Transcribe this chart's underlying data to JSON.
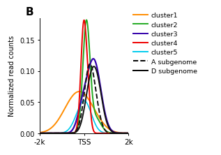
{
  "title": "B",
  "xlabel_ticks": [
    "-2k",
    "TSS",
    "2k"
  ],
  "ylabel": "Normalized read counts",
  "ylim": [
    0,
    0.185
  ],
  "yticks": [
    0.0,
    0.05,
    0.1,
    0.15
  ],
  "clusters": {
    "cluster1": {
      "color": "#FF8C00",
      "lw": 1.4
    },
    "cluster2": {
      "color": "#22AA22",
      "lw": 1.4
    },
    "cluster3": {
      "color": "#3300AA",
      "lw": 1.6
    },
    "cluster4": {
      "color": "#EE0000",
      "lw": 1.4
    },
    "cluster5": {
      "color": "#00CCEE",
      "lw": 1.2
    }
  },
  "subgenomes": {
    "A subgenome": {
      "color": "#111111",
      "ls": "dashed",
      "lw": 1.4
    },
    "D subgenome": {
      "color": "#111111",
      "ls": "solid",
      "lw": 1.4
    }
  },
  "bg_color": "#ffffff",
  "dpi": 100,
  "panel_label_fontsize": 11
}
